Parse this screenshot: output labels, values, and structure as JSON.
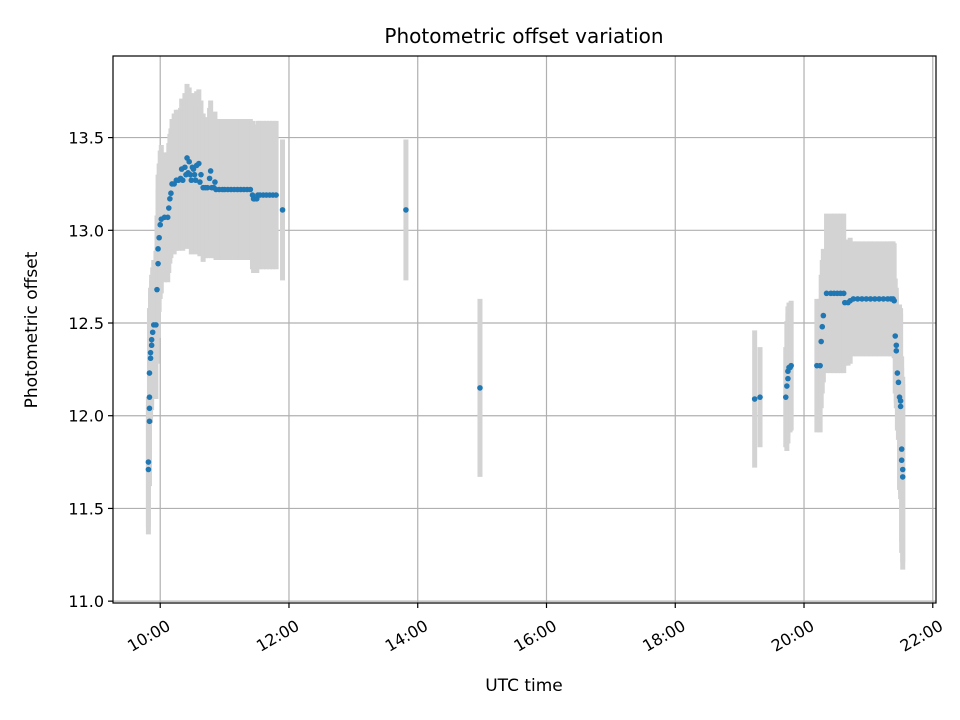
{
  "chart_data": {
    "type": "scatter",
    "title": "Photometric offset variation",
    "xlabel": "UTC time",
    "ylabel": "Photometric offset",
    "x_ticks": [
      "10:00",
      "12:00",
      "14:00",
      "16:00",
      "18:00",
      "20:00",
      "22:00"
    ],
    "y_ticks": [
      "11.0",
      "11.5",
      "12.0",
      "12.5",
      "13.0",
      "13.5"
    ],
    "xlim": [
      "09:16",
      "22:03"
    ],
    "ylim": [
      10.99,
      13.94
    ],
    "grid": true,
    "colors": {
      "points": "#1f77b4",
      "errorbars": "#d3d3d3",
      "grid": "#b0b0b0"
    },
    "series": [
      {
        "points": [
          [
            "09:49",
            11.71,
            0.35
          ],
          [
            "09:49",
            11.75,
            0.35
          ],
          [
            "09:50",
            11.97,
            0.35
          ],
          [
            "09:50",
            12.04,
            0.35
          ],
          [
            "09:50",
            12.1,
            0.35
          ],
          [
            "09:50",
            12.23,
            0.35
          ],
          [
            "09:51",
            12.31,
            0.35
          ],
          [
            "09:51",
            12.34,
            0.35
          ],
          [
            "09:52",
            12.38,
            0.35
          ],
          [
            "09:52",
            12.41,
            0.35
          ],
          [
            "09:53",
            12.45,
            0.35
          ],
          [
            "09:54",
            12.49,
            0.35
          ],
          [
            "09:56",
            12.49,
            0.4
          ],
          [
            "09:57",
            12.68,
            0.4
          ],
          [
            "09:58",
            12.82,
            0.4
          ],
          [
            "09:58",
            12.9,
            0.4
          ],
          [
            "09:59",
            12.96,
            0.4
          ],
          [
            "10:00",
            13.03,
            0.4
          ],
          [
            "10:01",
            13.06,
            0.4
          ],
          [
            "10:04",
            13.07,
            0.35
          ],
          [
            "10:07",
            13.07,
            0.35
          ],
          [
            "10:08",
            13.12,
            0.35
          ],
          [
            "10:09",
            13.17,
            0.35
          ],
          [
            "10:10",
            13.2,
            0.35
          ],
          [
            "10:11",
            13.25,
            0.35
          ],
          [
            "10:13",
            13.25,
            0.38
          ],
          [
            "10:15",
            13.27,
            0.38
          ],
          [
            "10:17",
            13.27,
            0.38
          ],
          [
            "10:19",
            13.28,
            0.38
          ],
          [
            "10:20",
            13.33,
            0.38
          ],
          [
            "10:21",
            13.27,
            0.38
          ],
          [
            "10:23",
            13.34,
            0.4
          ],
          [
            "10:24",
            13.3,
            0.4
          ],
          [
            "10:25",
            13.39,
            0.4
          ],
          [
            "10:26",
            13.31,
            0.4
          ],
          [
            "10:27",
            13.37,
            0.4
          ],
          [
            "10:28",
            13.3,
            0.4
          ],
          [
            "10:29",
            13.27,
            0.4
          ],
          [
            "10:30",
            13.34,
            0.4
          ],
          [
            "10:31",
            13.33,
            0.4
          ],
          [
            "10:32",
            13.3,
            0.4
          ],
          [
            "10:33",
            13.27,
            0.4
          ],
          [
            "10:34",
            13.35,
            0.4
          ],
          [
            "10:36",
            13.36,
            0.4
          ],
          [
            "10:37",
            13.26,
            0.4
          ],
          [
            "10:38",
            13.3,
            0.4
          ],
          [
            "10:40",
            13.23,
            0.4
          ],
          [
            "10:42",
            13.23,
            0.38
          ],
          [
            "10:44",
            13.23,
            0.38
          ],
          [
            "10:46",
            13.28,
            0.38
          ],
          [
            "10:47",
            13.32,
            0.38
          ],
          [
            "10:48",
            13.23,
            0.38
          ],
          [
            "10:50",
            13.23,
            0.38
          ],
          [
            "10:51",
            13.26,
            0.38
          ],
          [
            "10:52",
            13.22,
            0.38
          ],
          [
            "10:55",
            13.22,
            0.38
          ],
          [
            "10:58",
            13.22,
            0.38
          ],
          [
            "11:00",
            13.22,
            0.38
          ],
          [
            "11:03",
            13.22,
            0.38
          ],
          [
            "11:06",
            13.22,
            0.38
          ],
          [
            "11:09",
            13.22,
            0.38
          ],
          [
            "11:12",
            13.22,
            0.38
          ],
          [
            "11:15",
            13.22,
            0.38
          ],
          [
            "11:18",
            13.22,
            0.38
          ],
          [
            "11:21",
            13.22,
            0.38
          ],
          [
            "11:24",
            13.22,
            0.38
          ],
          [
            "11:26",
            13.19,
            0.4
          ],
          [
            "11:27",
            13.17,
            0.4
          ],
          [
            "11:28",
            13.17,
            0.4
          ],
          [
            "11:30",
            13.17,
            0.4
          ],
          [
            "11:31",
            13.19,
            0.4
          ],
          [
            "11:33",
            13.19,
            0.4
          ],
          [
            "11:36",
            13.19,
            0.4
          ],
          [
            "11:39",
            13.19,
            0.4
          ],
          [
            "11:42",
            13.19,
            0.4
          ],
          [
            "11:45",
            13.19,
            0.4
          ],
          [
            "11:48",
            13.19,
            0.4
          ],
          [
            "11:54",
            13.11,
            0.38
          ],
          [
            "13:49",
            13.11,
            0.38
          ],
          [
            "14:58",
            12.15,
            0.48
          ],
          [
            "19:14",
            12.09,
            0.37
          ],
          [
            "19:19",
            12.1,
            0.27
          ],
          [
            "19:43",
            12.1,
            0.27
          ],
          [
            "19:44",
            12.16,
            0.35
          ],
          [
            "19:45",
            12.2,
            0.35
          ],
          [
            "19:45",
            12.24,
            0.35
          ],
          [
            "19:46",
            12.26,
            0.35
          ],
          [
            "19:47",
            12.26,
            0.35
          ],
          [
            "19:48",
            12.27,
            0.35
          ],
          [
            "20:12",
            12.27,
            0.36
          ],
          [
            "20:15",
            12.27,
            0.36
          ],
          [
            "20:16",
            12.4,
            0.36
          ],
          [
            "20:17",
            12.48,
            0.36
          ],
          [
            "20:18",
            12.54,
            0.36
          ],
          [
            "20:21",
            12.66,
            0.43
          ],
          [
            "20:25",
            12.66,
            0.43
          ],
          [
            "20:28",
            12.66,
            0.43
          ],
          [
            "20:31",
            12.66,
            0.43
          ],
          [
            "20:34",
            12.66,
            0.43
          ],
          [
            "20:37",
            12.66,
            0.43
          ],
          [
            "20:38",
            12.61,
            0.34
          ],
          [
            "20:41",
            12.61,
            0.34
          ],
          [
            "20:43",
            12.62,
            0.34
          ],
          [
            "20:46",
            12.63,
            0.31
          ],
          [
            "20:50",
            12.63,
            0.31
          ],
          [
            "20:54",
            12.63,
            0.31
          ],
          [
            "20:58",
            12.63,
            0.31
          ],
          [
            "21:02",
            12.63,
            0.31
          ],
          [
            "21:06",
            12.63,
            0.31
          ],
          [
            "21:10",
            12.63,
            0.31
          ],
          [
            "21:14",
            12.63,
            0.31
          ],
          [
            "21:18",
            12.63,
            0.31
          ],
          [
            "21:21",
            12.63,
            0.31
          ],
          [
            "21:23",
            12.63,
            0.31
          ],
          [
            "21:24",
            12.62,
            0.31
          ],
          [
            "21:25",
            12.43,
            0.31
          ],
          [
            "21:26",
            12.38,
            0.31
          ],
          [
            "21:26",
            12.35,
            0.31
          ],
          [
            "21:27",
            12.23,
            0.31
          ],
          [
            "21:28",
            12.18,
            0.31
          ],
          [
            "21:29",
            12.1,
            0.5
          ],
          [
            "21:30",
            12.08,
            0.5
          ],
          [
            "21:30",
            12.05,
            0.5
          ],
          [
            "21:31",
            11.82,
            0.5
          ],
          [
            "21:31",
            11.76,
            0.5
          ],
          [
            "21:32",
            11.71,
            0.5
          ],
          [
            "21:32",
            11.67,
            0.5
          ]
        ]
      }
    ]
  }
}
